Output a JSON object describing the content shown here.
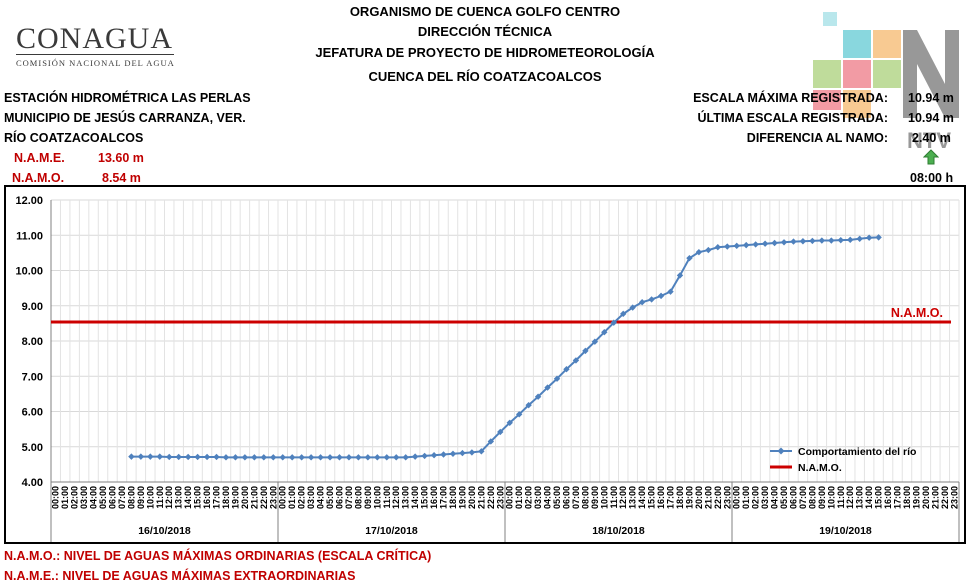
{
  "header": {
    "line1": "ORGANISMO DE CUENCA GOLFO CENTRO",
    "line2": "DIRECCIÓN TÉCNICA",
    "line3": "JEFATURA DE PROYECTO DE HIDROMETEOROLOGÍA",
    "line4": "CUENCA DEL RÍO COATZACOALCOS"
  },
  "logo": {
    "name": "CONAGUA",
    "subtitle": "COMISIÓN NACIONAL DEL AGUA"
  },
  "watermark": {
    "text": "NTV",
    "colors": [
      "#e94a5a",
      "#8cc04a",
      "#2ab8c4",
      "#f4a03a",
      "#444444"
    ]
  },
  "station": {
    "name": "ESTACIÓN HIDROMÉTRICA LAS PERLAS",
    "municipality": "MUNICIPIO DE JESÚS CARRANZA, VER.",
    "river": "RÍO COATZACOALCOS",
    "name_label": "N.A.M.E.",
    "name_value": "13.60 m",
    "namo_label": "N.A.M.O.",
    "namo_value": "8.54 m"
  },
  "stats": {
    "max_label": "ESCALA MÁXIMA REGISTRADA:",
    "max_value": "10.94 m",
    "last_label": "ÚLTIMA ESCALA REGISTRADA:",
    "last_value": "10.94 m",
    "diff_label": "DIFERENCIA AL NAMO:",
    "diff_value": "2.40 m",
    "trend_icon": "arrow-up-icon",
    "time": "08:00 h"
  },
  "notes": {
    "namo": "N.A.M.O.: NIVEL DE AGUAS MÁXIMAS ORDINARIAS (ESCALA CRÍTICA)",
    "name": "N.A.M.E.: NIVEL DE AGUAS MÁXIMAS EXTRAORDINARIAS"
  },
  "chart_data": {
    "type": "line",
    "ylim": [
      4.0,
      12.0
    ],
    "yticks": [
      "4.00",
      "5.00",
      "6.00",
      "7.00",
      "8.00",
      "9.00",
      "10.00",
      "11.00",
      "12.00"
    ],
    "hours": [
      "00:00",
      "01:00",
      "02:00",
      "03:00",
      "04:00",
      "05:00",
      "06:00",
      "07:00",
      "08:00",
      "09:00",
      "10:00",
      "11:00",
      "12:00",
      "13:00",
      "14:00",
      "15:00",
      "16:00",
      "17:00",
      "18:00",
      "19:00",
      "20:00",
      "21:00",
      "22:00",
      "23:00"
    ],
    "days": [
      "16/10/2018",
      "17/10/2018",
      "18/10/2018",
      "19/10/2018"
    ],
    "grid": true,
    "legend_position": "bottom-right",
    "namo_value": 8.54,
    "namo_label": "N.A.M.O.",
    "namo_color": "#cc0000",
    "series_color": "#4f81bd",
    "series": [
      {
        "name": "Comportamiento del río",
        "x_start_index": 8,
        "values": [
          4.72,
          4.72,
          4.72,
          4.72,
          4.71,
          4.71,
          4.71,
          4.71,
          4.71,
          4.71,
          4.7,
          4.7,
          4.7,
          4.7,
          4.7,
          4.7,
          4.7,
          4.7,
          4.7,
          4.7,
          4.7,
          4.7,
          4.7,
          4.7,
          4.7,
          4.7,
          4.7,
          4.7,
          4.7,
          4.7,
          4.72,
          4.74,
          4.76,
          4.78,
          4.8,
          4.82,
          4.84,
          4.87,
          5.15,
          5.42,
          5.68,
          5.92,
          6.18,
          6.42,
          6.68,
          6.93,
          7.2,
          7.45,
          7.72,
          7.98,
          8.25,
          8.52,
          8.77,
          8.95,
          9.1,
          9.18,
          9.28,
          9.4,
          9.86,
          10.35,
          10.52,
          10.58,
          10.66,
          10.68,
          10.7,
          10.72,
          10.74,
          10.76,
          10.78,
          10.8,
          10.82,
          10.83,
          10.84,
          10.85,
          10.85,
          10.86,
          10.87,
          10.9,
          10.93,
          10.94
        ]
      },
      {
        "name": "N.A.M.O."
      }
    ]
  }
}
